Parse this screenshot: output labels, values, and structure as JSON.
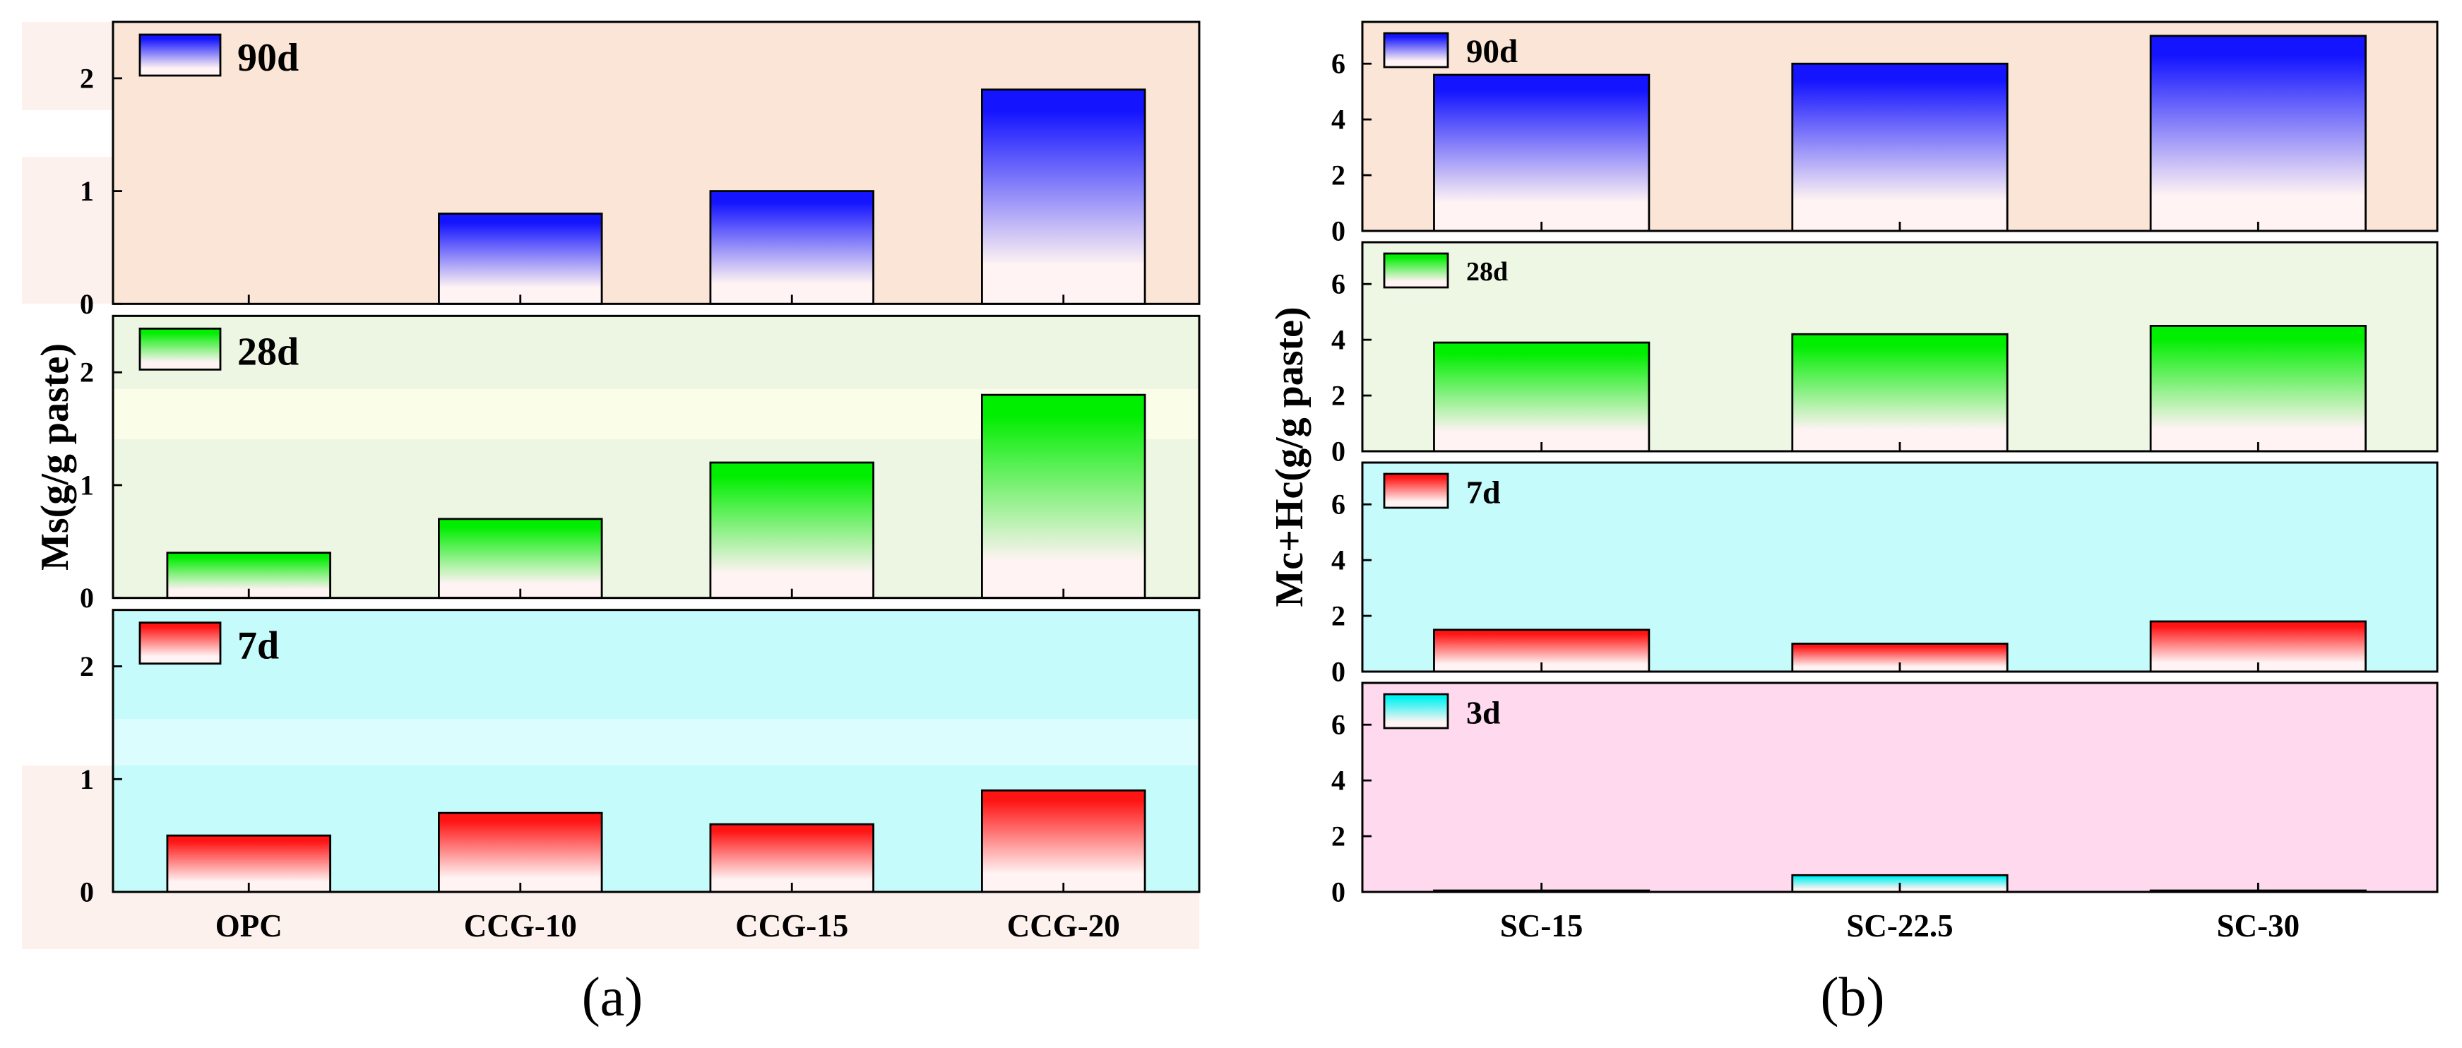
{
  "chart_data": [
    {
      "type": "bar",
      "panel_label": "(a)",
      "ylabel": "Ms(g/g paste)",
      "categories": [
        "OPC",
        "CCG-10",
        "CCG-15",
        "CCG-20"
      ],
      "ylim": [
        0,
        2.5
      ],
      "yticks": [
        0,
        1,
        2
      ],
      "fade_color": "#fff3f3",
      "series": [
        {
          "name": "90d",
          "values": [
            0,
            0.8,
            1.0,
            1.9
          ],
          "color": "#1414ff",
          "background": "#fbe5d6"
        },
        {
          "name": "28d",
          "values": [
            0.4,
            0.7,
            1.2,
            1.8
          ],
          "color": "#00ee00",
          "background": "#edf6e2"
        },
        {
          "name": "7d",
          "values": [
            0.5,
            0.7,
            0.6,
            0.9
          ],
          "color": "#ff1414",
          "background": "#c6fbfb"
        }
      ]
    },
    {
      "type": "bar",
      "panel_label": "(b)",
      "ylabel": "Mc+Hc(g/g paste)",
      "categories": [
        "SC-15",
        "SC-22.5",
        "SC-30"
      ],
      "ylim": [
        0,
        7.5
      ],
      "yticks": [
        0,
        2,
        4,
        6
      ],
      "fade_color": "#fff3f3",
      "series": [
        {
          "name": "90d",
          "values": [
            5.6,
            6.0,
            7.0
          ],
          "color": "#1414ff",
          "background": "#fbe5d6"
        },
        {
          "name": "28d",
          "values": [
            3.9,
            4.2,
            4.5
          ],
          "color": "#00ee00",
          "background": "#eef7e3"
        },
        {
          "name": "7d",
          "values": [
            1.5,
            1.0,
            1.8
          ],
          "color": "#ff1414",
          "background": "#c6fbfb"
        },
        {
          "name": "3d",
          "values": [
            0.05,
            0.6,
            0.05
          ],
          "color": "#00f2f2",
          "background": "#ffd9ee"
        }
      ]
    }
  ]
}
